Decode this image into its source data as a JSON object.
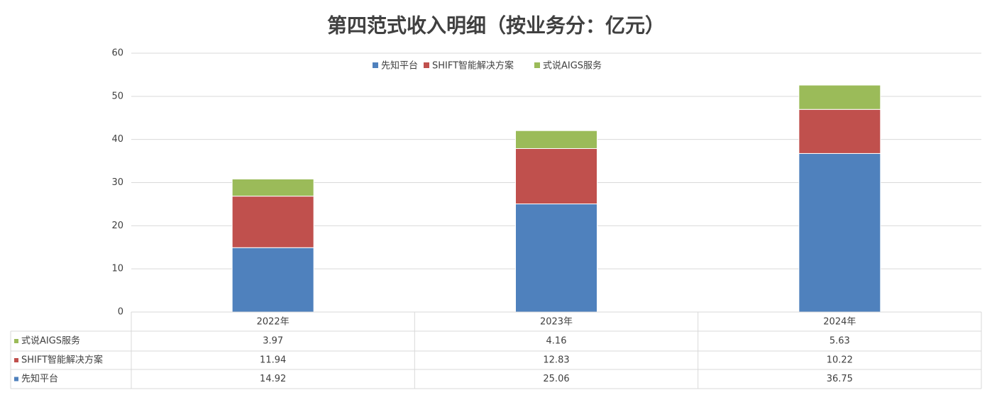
{
  "chart_data": {
    "type": "stacked_bar",
    "title": "第四范式收入明细（按业务分：亿元）",
    "categories": [
      "2022年",
      "2023年",
      "2024年"
    ],
    "series": [
      {
        "name": "先知平台",
        "color": "#4f81bd",
        "values": [
          14.92,
          25.06,
          36.75
        ]
      },
      {
        "name": "SHIFT智能解决方案",
        "color": "#c0504d",
        "values": [
          11.94,
          12.83,
          10.22
        ]
      },
      {
        "name": "式说AIGS服务",
        "color": "#9bbb59",
        "values": [
          3.97,
          4.16,
          5.63
        ]
      }
    ],
    "ylim": [
      0,
      60
    ],
    "yticks": [
      0,
      10,
      20,
      30,
      40,
      50,
      60
    ],
    "grid": true,
    "legend": "top",
    "data_table": true
  }
}
